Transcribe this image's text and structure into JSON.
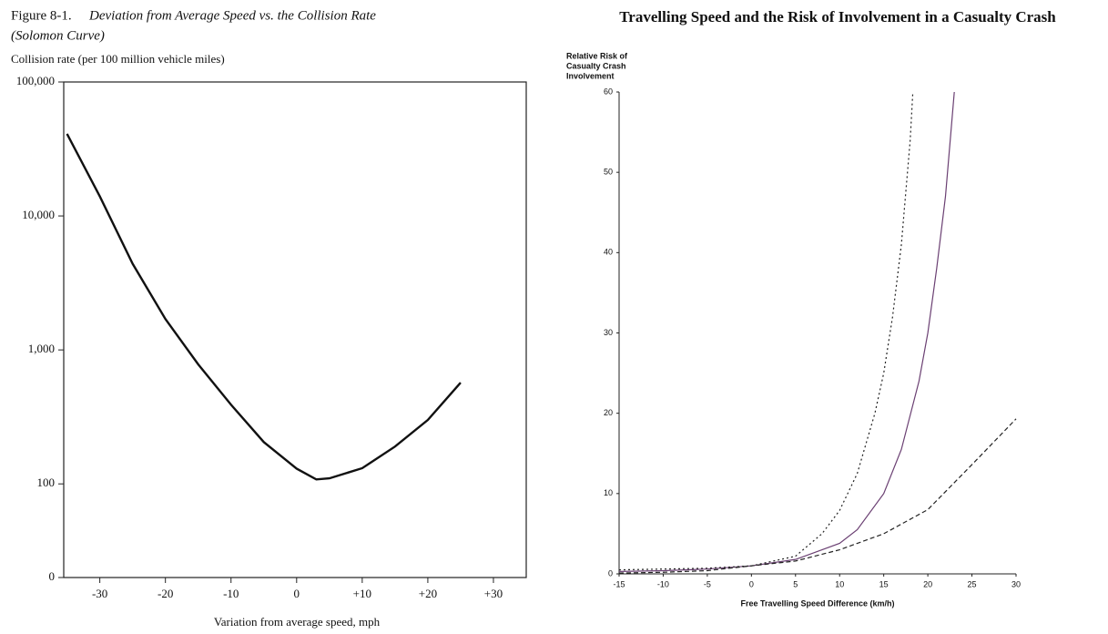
{
  "chart_data": [
    {
      "type": "line",
      "log_y": true,
      "figure_label": "Figure 8-1.",
      "title": "Deviation from Average Speed vs. the Collision Rate",
      "subtitle": "(Solomon Curve)",
      "ylabel": "Collision rate (per 100 million vehicle miles)",
      "xlabel": "Variation from average speed, mph",
      "xlim": [
        -35.5,
        35
      ],
      "ylim": [
        20,
        100000
      ],
      "xticks": [
        -30,
        -20,
        -10,
        0,
        {
          "value": 10,
          "label": "+10"
        },
        {
          "value": 20,
          "label": "+20"
        },
        {
          "value": 30,
          "label": "+30"
        }
      ],
      "yticks": [
        {
          "value": 20,
          "label": "0"
        },
        100,
        {
          "value": 1000,
          "label": "1,000"
        },
        {
          "value": 10000,
          "label": "10,000"
        },
        {
          "value": 100000,
          "label": "100,000"
        }
      ],
      "frame": true,
      "series": [
        {
          "color": "#111111",
          "dash": "solid",
          "x": [
            -35,
            -30,
            -25,
            -20,
            -15,
            -10,
            -5,
            0,
            3,
            5,
            10,
            15,
            20,
            25
          ],
          "values": [
            41000,
            14000,
            4400,
            1700,
            780,
            390,
            205,
            130,
            108,
            110,
            131,
            190,
            300,
            570
          ]
        }
      ]
    },
    {
      "type": "line",
      "log_y": false,
      "title": "Travelling Speed and the Risk of Involvement in a Casualty Crash",
      "ylabel": [
        "Relative Risk of",
        "Casualty Crash",
        "Involvement"
      ],
      "xlabel": "Free Travelling Speed Difference (km/h)",
      "xlim": [
        -15,
        30
      ],
      "ylim": [
        0,
        60
      ],
      "xticks": [
        -15,
        -10,
        -5,
        0,
        5,
        10,
        15,
        20,
        25,
        30
      ],
      "yticks": [
        0,
        10,
        20,
        30,
        40,
        50,
        60
      ],
      "frame": false,
      "series": [
        {
          "color": "#6a3f72",
          "dash": "solid",
          "x": [
            -15,
            -10,
            -5,
            0,
            5,
            10,
            12,
            15,
            17,
            19,
            20,
            21,
            22,
            23
          ],
          "values": [
            0.3,
            0.4,
            0.6,
            1,
            1.8,
            3.8,
            5.5,
            10,
            15.5,
            24,
            30,
            38,
            47,
            60
          ]
        },
        {
          "color": "#222222",
          "dash": "dotted",
          "x": [
            -15,
            -10,
            -5,
            0,
            5,
            8,
            10,
            12,
            14,
            15,
            16,
            17,
            18,
            18.3
          ],
          "values": [
            0.5,
            0.6,
            0.7,
            1,
            2.2,
            5,
            7.9,
            12.5,
            20,
            25,
            32,
            41,
            54,
            60
          ]
        },
        {
          "color": "#222222",
          "dash": "dashed",
          "x": [
            -15,
            -10,
            -5,
            0,
            5,
            10,
            15,
            20,
            25,
            30
          ],
          "values": [
            0.1,
            0.2,
            0.4,
            1,
            1.6,
            3,
            5,
            8,
            13.6,
            19.3
          ]
        }
      ]
    }
  ]
}
